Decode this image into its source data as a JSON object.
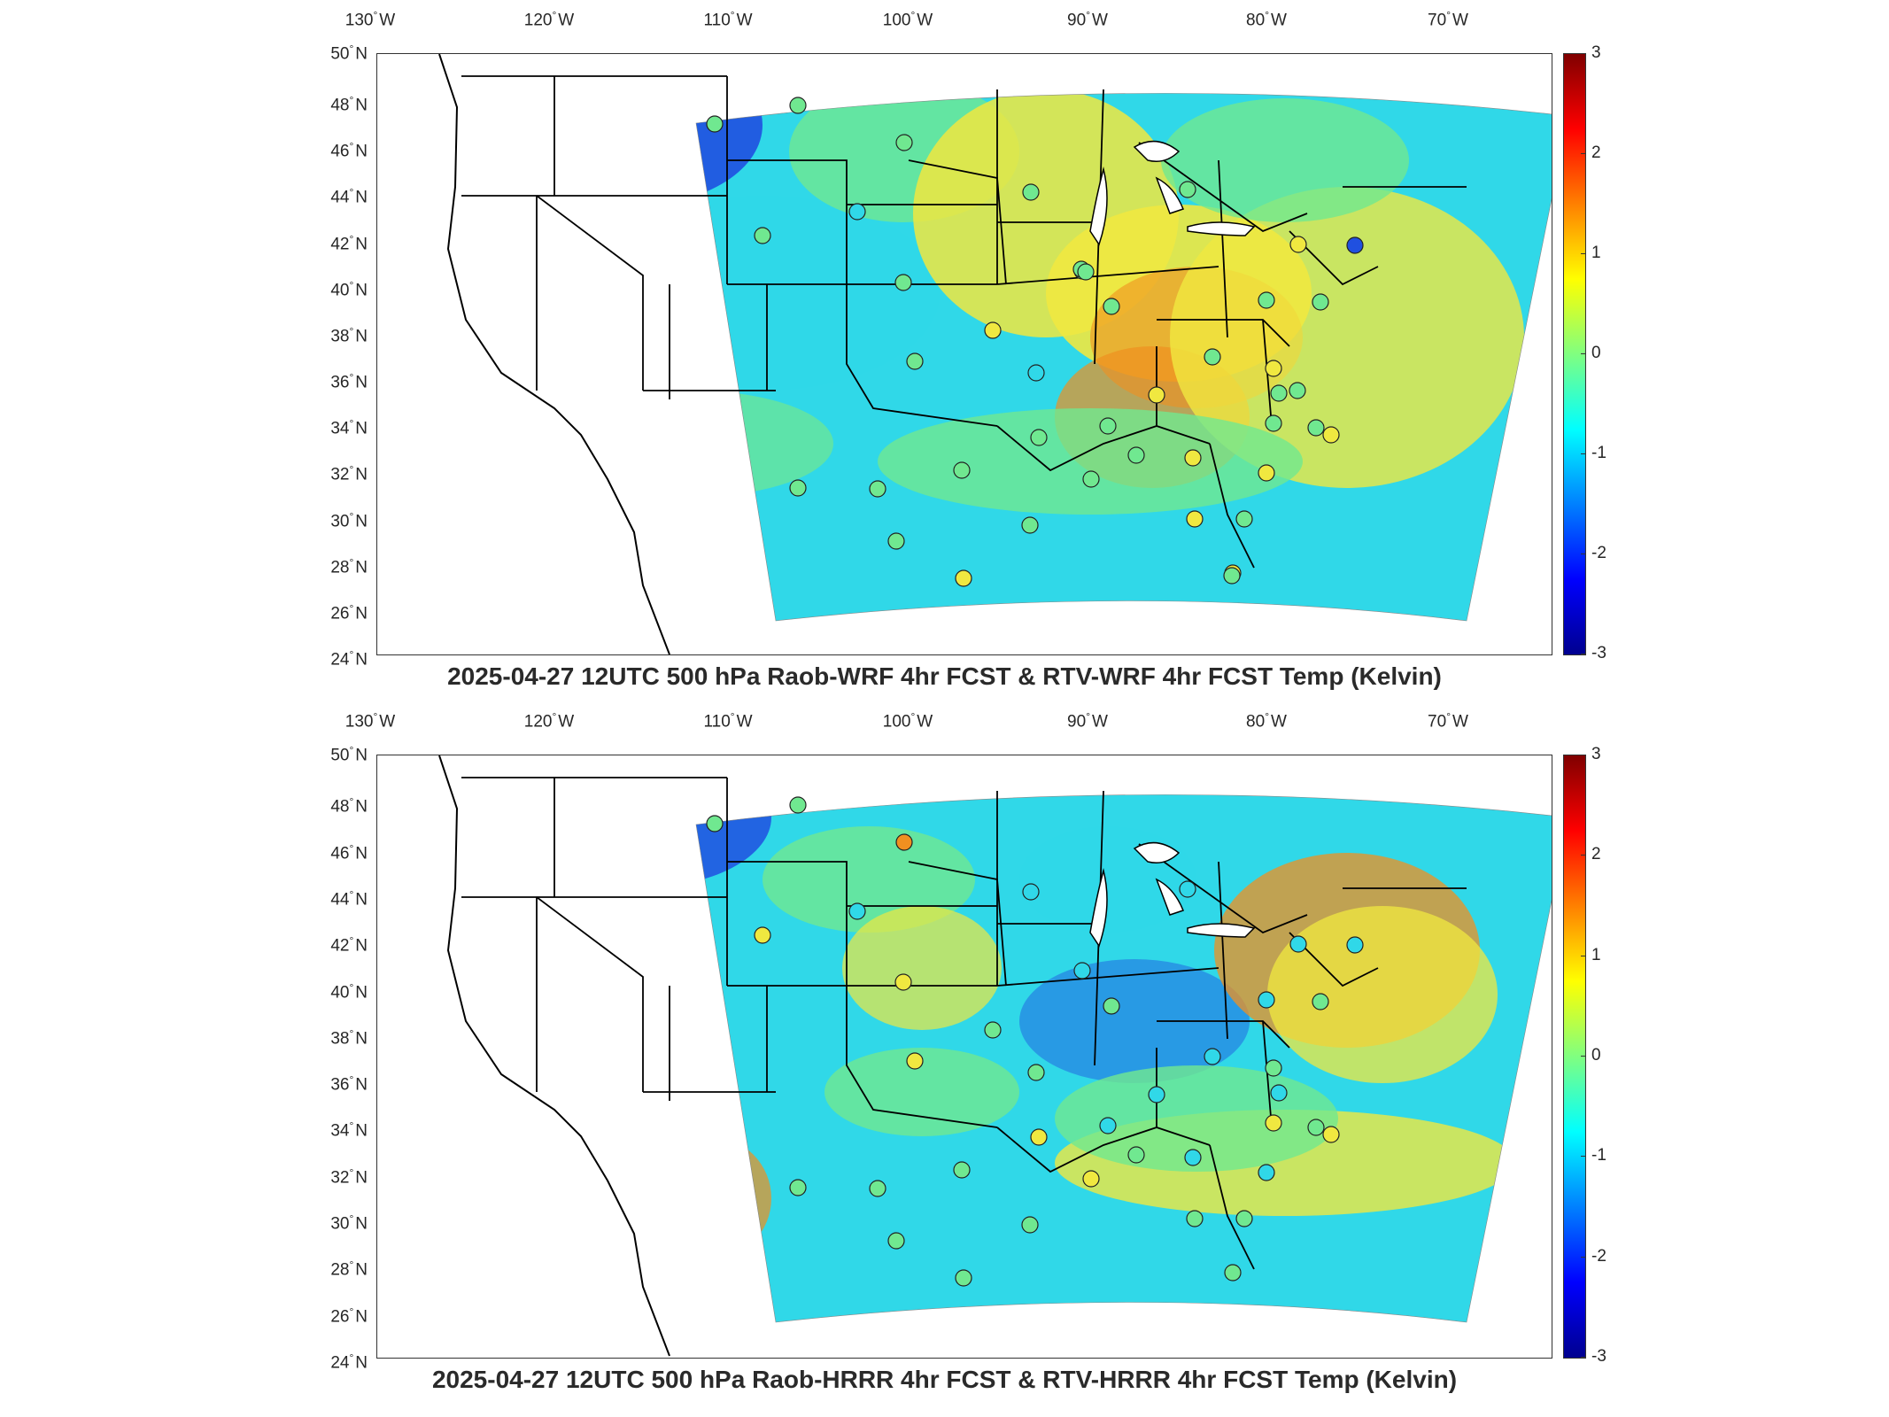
{
  "map_top": {
    "title": "2025-04-27 12UTC 500 hPa Raob-WRF 4hr FCST & RTV-WRF 4hr FCST Temp (Kelvin)",
    "lon_ticks": [
      "130",
      "120",
      "110",
      "100",
      "90",
      "80",
      "70"
    ],
    "lon_suffix": "W",
    "lat_ticks": [
      "50",
      "48",
      "46",
      "44",
      "42",
      "40",
      "38",
      "36",
      "34",
      "32",
      "30",
      "28",
      "26",
      "24"
    ],
    "lat_suffix": "N",
    "colorbar": {
      "ticks": [
        "3",
        "2",
        "1",
        "0",
        "-1",
        "-2",
        "-3"
      ],
      "range": [
        -3,
        3
      ],
      "colormap": "jet"
    },
    "grid": "off"
  },
  "map_bottom": {
    "title": "2025-04-27 12UTC 500 hPa Raob-HRRR 4hr FCST & RTV-HRRR 4hr FCST Temp (Kelvin)",
    "lon_ticks": [
      "130",
      "120",
      "110",
      "100",
      "90",
      "80",
      "70"
    ],
    "lon_suffix": "W",
    "lat_ticks": [
      "50",
      "48",
      "46",
      "44",
      "42",
      "40",
      "38",
      "36",
      "34",
      "32",
      "30",
      "28",
      "26",
      "24"
    ],
    "lat_suffix": "N",
    "colorbar": {
      "ticks": [
        "3",
        "2",
        "1",
        "0",
        "-1",
        "-2",
        "-3"
      ],
      "range": [
        -3,
        3
      ],
      "colormap": "jet"
    },
    "grid": "off"
  },
  "colors": {
    "blue_region": "#2050e0",
    "cyan": "#30d8e8",
    "green": "#70e890",
    "yellow": "#f0e840",
    "orange": "#f09020",
    "boundary": "#000000"
  }
}
